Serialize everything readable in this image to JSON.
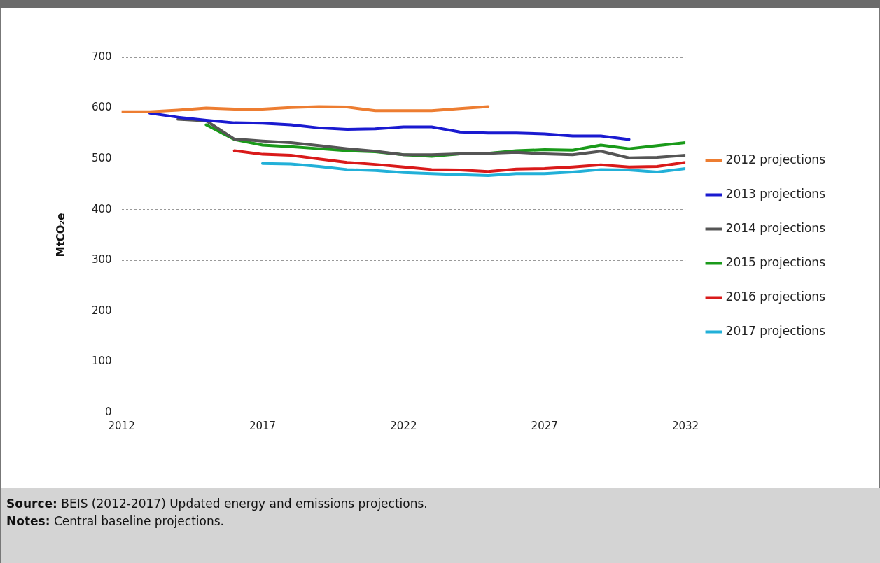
{
  "chart_data": {
    "type": "line",
    "ylabel": "MtCO₂e",
    "xlim": [
      2012,
      2032
    ],
    "xticks": [
      2012,
      2017,
      2022,
      2027,
      2032
    ],
    "ylim": [
      0,
      700
    ],
    "yticks": [
      0,
      100,
      200,
      300,
      400,
      500,
      600,
      700
    ],
    "grid": "y",
    "legend": "right",
    "line_style": "solid",
    "marker": "none",
    "series": [
      {
        "name": "2012 projections",
        "color": "#ed7d31",
        "x": [
          2012,
          2013,
          2014,
          2015,
          2016,
          2017,
          2018,
          2019,
          2020,
          2021,
          2022,
          2023,
          2024,
          2025
        ],
        "values": [
          593,
          593,
          596,
          600,
          598,
          598,
          601,
          603,
          602,
          595,
          595,
          595,
          599,
          603
        ]
      },
      {
        "name": "2013 projections",
        "color": "#1a1ad0",
        "x": [
          2013,
          2014,
          2015,
          2016,
          2017,
          2018,
          2019,
          2020,
          2021,
          2022,
          2023,
          2024,
          2025,
          2026,
          2027,
          2028,
          2029,
          2030
        ],
        "values": [
          590,
          582,
          576,
          571,
          570,
          567,
          561,
          558,
          559,
          563,
          563,
          553,
          551,
          551,
          549,
          545,
          545,
          538
        ]
      },
      {
        "name": "2014 projections",
        "color": "#555555",
        "x": [
          2014,
          2015,
          2016,
          2017,
          2018,
          2019,
          2020,
          2021,
          2022,
          2023,
          2024,
          2025,
          2026,
          2027,
          2028,
          2029,
          2030,
          2031,
          2032
        ],
        "values": [
          578,
          575,
          539,
          535,
          532,
          526,
          520,
          515,
          508,
          508,
          510,
          511,
          513,
          510,
          508,
          515,
          502,
          503,
          507
        ]
      },
      {
        "name": "2015 projections",
        "color": "#1a9a1a",
        "x": [
          2015,
          2016,
          2017,
          2018,
          2019,
          2020,
          2021,
          2022,
          2023,
          2024,
          2025,
          2026,
          2027,
          2028,
          2029,
          2030,
          2031,
          2032
        ],
        "values": [
          567,
          538,
          527,
          524,
          520,
          516,
          514,
          508,
          505,
          510,
          511,
          516,
          518,
          517,
          527,
          520,
          526,
          532
        ]
      },
      {
        "name": "2016 projections",
        "color": "#d91a1a",
        "x": [
          2016,
          2017,
          2018,
          2019,
          2020,
          2021,
          2022,
          2023,
          2024,
          2025,
          2026,
          2027,
          2028,
          2029,
          2030,
          2031,
          2032
        ],
        "values": [
          516,
          509,
          507,
          500,
          493,
          489,
          484,
          479,
          478,
          475,
          480,
          481,
          484,
          488,
          484,
          485,
          493
        ]
      },
      {
        "name": "2017 projections",
        "color": "#22b0d8",
        "x": [
          2017,
          2018,
          2019,
          2020,
          2021,
          2022,
          2023,
          2024,
          2025,
          2026,
          2027,
          2028,
          2029,
          2030,
          2031,
          2032
        ],
        "values": [
          491,
          490,
          485,
          479,
          477,
          473,
          471,
          469,
          467,
          471,
          471,
          474,
          479,
          478,
          474,
          481
        ]
      }
    ],
    "annotations": [
      "Source: BEIS (2012-2017) Updated energy and emissions projections.",
      "Notes: Central baseline projections."
    ]
  }
}
